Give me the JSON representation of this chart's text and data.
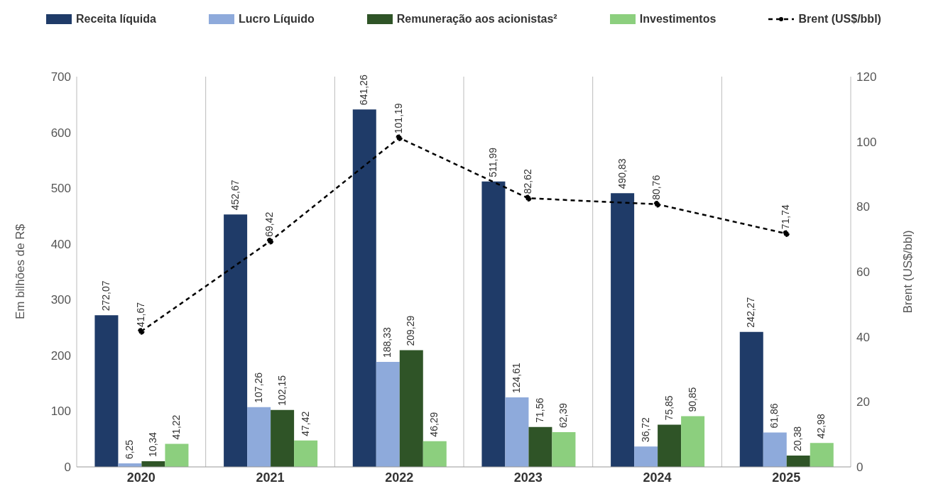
{
  "chart_data": {
    "type": "bar",
    "categories": [
      "2020",
      "2021",
      "2022",
      "2023",
      "2024",
      "2025"
    ],
    "ylabel": "Em bilhões de R$",
    "y2label": "Brent (US$/bbl)",
    "ylim": [
      0,
      700
    ],
    "yticks": [
      0,
      100,
      200,
      300,
      400,
      500,
      600,
      700
    ],
    "y2lim": [
      0,
      120
    ],
    "y2ticks": [
      0,
      20,
      40,
      60,
      80,
      100,
      120
    ],
    "grid": "x",
    "legend": "top",
    "series": [
      {
        "name": "Receita líquida",
        "color": "#1f3b68",
        "values": [
          272.07,
          452.67,
          641.26,
          511.99,
          490.83,
          242.27
        ],
        "value_labels": [
          "272,07",
          "452,67",
          "641,26",
          "511,99",
          "490,83",
          "242,27"
        ]
      },
      {
        "name": "Lucro Líquido",
        "color": "#8eaadb",
        "values": [
          6.25,
          107.26,
          188.33,
          124.61,
          36.72,
          61.86
        ],
        "value_labels": [
          "6,25",
          "107,26",
          "188,33",
          "124,61",
          "36,72",
          "61,86"
        ]
      },
      {
        "name": "Remuneração aos acionistas²",
        "color": "#2f5427",
        "values": [
          10.34,
          102.15,
          209.29,
          71.56,
          75.85,
          20.38
        ],
        "value_labels": [
          "10,34",
          "102,15",
          "209,29",
          "71,56",
          "75,85",
          "20,38"
        ]
      },
      {
        "name": "Investimentos",
        "color": "#8ccf7e",
        "values": [
          41.22,
          47.42,
          46.29,
          62.39,
          90.85,
          42.98
        ],
        "value_labels": [
          "41,22",
          "47,42",
          "46,29",
          "62,39",
          "90,85",
          "42,98"
        ]
      },
      {
        "name": "Brent (US$/bbl)",
        "type": "line",
        "axis": "y2",
        "color": "#000000",
        "marker": "circle",
        "line_style": "dashed",
        "values": [
          41.67,
          69.42,
          101.19,
          82.62,
          80.76,
          71.74
        ],
        "value_labels": [
          "41,67",
          "69,42",
          "101,19",
          "82,62",
          "80,76",
          "71,74"
        ]
      }
    ]
  }
}
